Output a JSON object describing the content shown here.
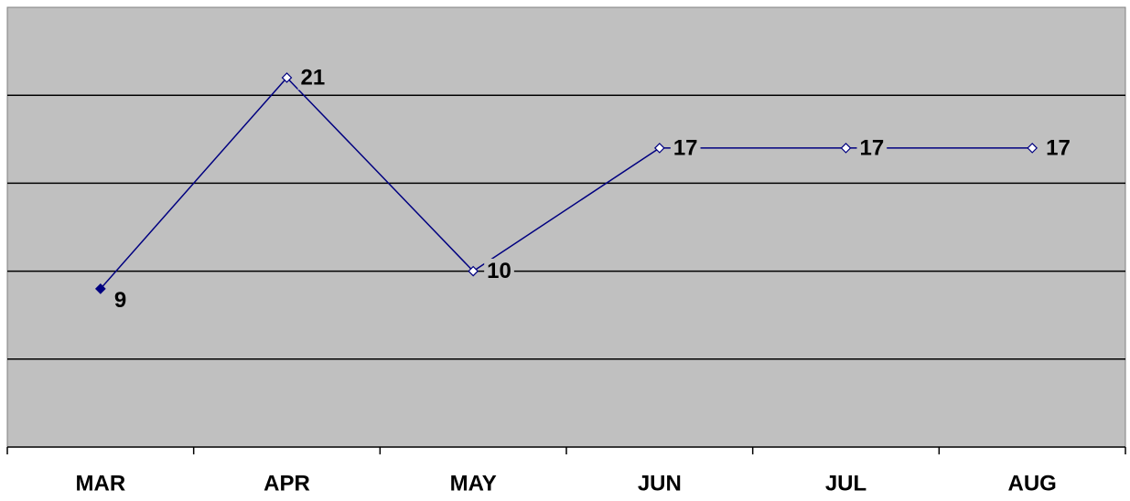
{
  "chart_data": {
    "type": "line",
    "categories": [
      "MAR",
      "APR",
      "MAY",
      "JUN",
      "JUL",
      "AUG"
    ],
    "series": [
      {
        "values": [
          9,
          21,
          10,
          17,
          17,
          17
        ],
        "color": "#000080"
      }
    ],
    "data_labels": [
      "9",
      "21",
      "10",
      "17",
      "17",
      "17"
    ],
    "ylim": [
      0,
      25
    ],
    "grid": true,
    "legend": "none",
    "colors": {
      "plot_background": "#c0c0c0",
      "line": "#000080",
      "first_marker_fill": "#000080",
      "marker_fill": "#ffffff",
      "gridline": "#000000"
    }
  }
}
